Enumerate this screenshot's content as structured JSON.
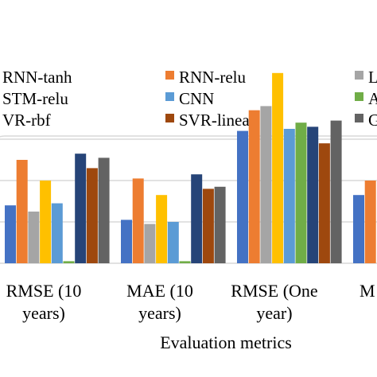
{
  "chart_data": {
    "type": "bar",
    "xlabel": "Evaluation metrics",
    "ylabel": "",
    "grid": true,
    "legend_position": "top",
    "categories": [
      [
        "RMSE (10",
        "years)"
      ],
      [
        "MAE (10",
        "years)"
      ],
      [
        "RMSE (One",
        "year)"
      ],
      [
        "M",
        ""
      ]
    ],
    "series": [
      {
        "name": "RNN-tanh",
        "color": "#4472C4",
        "values": [
          2.8,
          2.1,
          6.4,
          3.3
        ]
      },
      {
        "name": "RNN-relu",
        "color": "#ED7D31",
        "values": [
          5.0,
          4.1,
          7.4,
          4.0
        ]
      },
      {
        "name": "L",
        "color": "#A5A5A5",
        "values": [
          2.5,
          1.9,
          7.6,
          null
        ]
      },
      {
        "name": "STM-relu",
        "color": "#FFC000",
        "values": [
          4.0,
          3.3,
          9.2,
          null
        ]
      },
      {
        "name": "CNN",
        "color": "#5B9BD5",
        "values": [
          2.9,
          2.0,
          6.5,
          null
        ]
      },
      {
        "name": "A",
        "color": "#70AD47",
        "values": [
          0.1,
          0.1,
          6.8,
          null
        ]
      },
      {
        "name": "VR-rbf",
        "color": "#264478",
        "values": [
          5.3,
          4.3,
          6.6,
          null
        ]
      },
      {
        "name": "SVR-linear",
        "color": "#9E480E",
        "values": [
          4.6,
          3.6,
          5.8,
          null
        ]
      },
      {
        "name": "G",
        "color": "#636363",
        "values": [
          5.1,
          3.7,
          6.9,
          null
        ]
      }
    ]
  }
}
